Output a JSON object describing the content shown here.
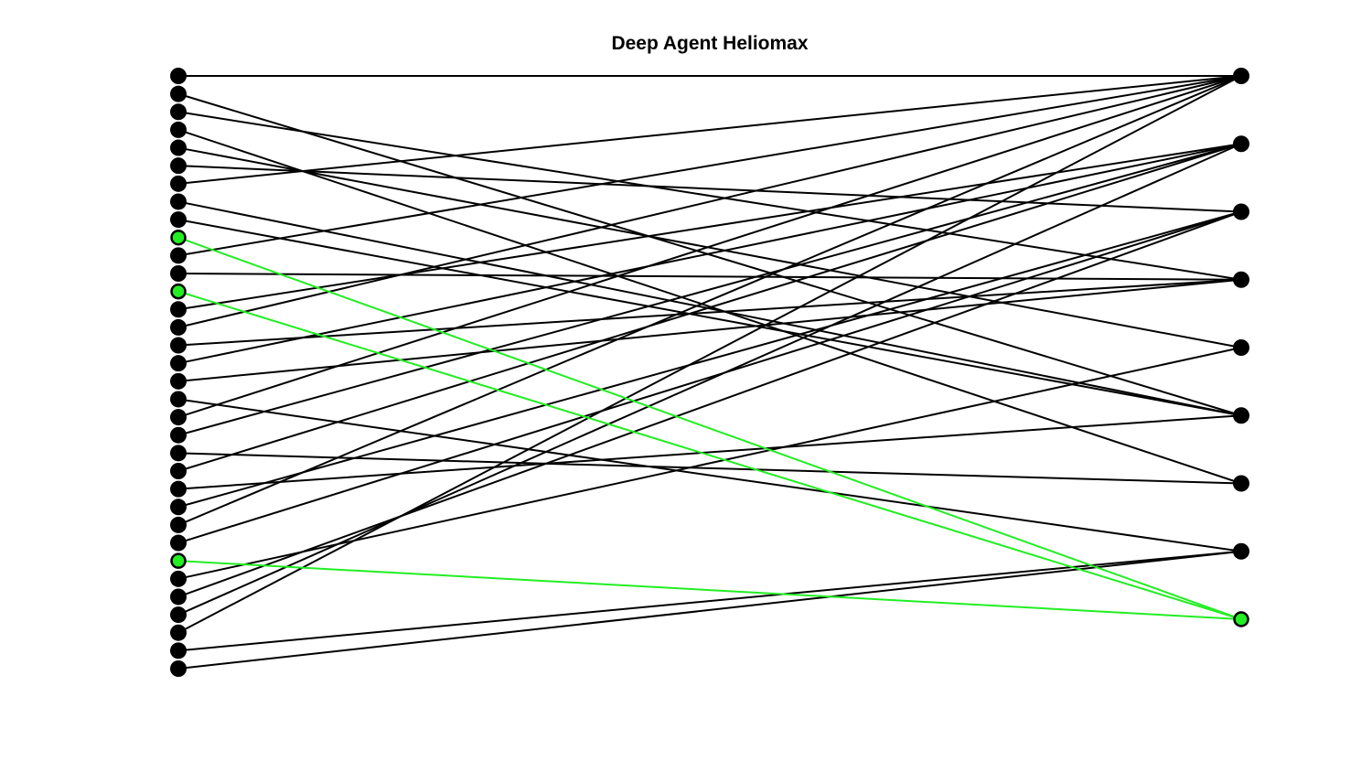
{
  "title": "Deep Agent Heliomax",
  "colors": {
    "default": "#000000",
    "highlight": "#22ee22"
  },
  "left_node_count": 34,
  "right_node_count": 9,
  "highlighted_left": [
    9,
    12,
    27
  ],
  "highlighted_right": [
    8
  ],
  "edges": [
    [
      0,
      0
    ],
    [
      1,
      5
    ],
    [
      2,
      3
    ],
    [
      3,
      6
    ],
    [
      4,
      4
    ],
    [
      5,
      2
    ],
    [
      6,
      0
    ],
    [
      7,
      5
    ],
    [
      8,
      5
    ],
    [
      9,
      8
    ],
    [
      10,
      0
    ],
    [
      11,
      3
    ],
    [
      12,
      8
    ],
    [
      13,
      1
    ],
    [
      14,
      0
    ],
    [
      15,
      3
    ],
    [
      16,
      1
    ],
    [
      17,
      3
    ],
    [
      18,
      7
    ],
    [
      19,
      0
    ],
    [
      20,
      1
    ],
    [
      21,
      6
    ],
    [
      22,
      1
    ],
    [
      23,
      5
    ],
    [
      24,
      2
    ],
    [
      25,
      0
    ],
    [
      26,
      2
    ],
    [
      27,
      8
    ],
    [
      28,
      4
    ],
    [
      29,
      2
    ],
    [
      30,
      1
    ],
    [
      31,
      0
    ],
    [
      32,
      7
    ],
    [
      33,
      7
    ]
  ]
}
